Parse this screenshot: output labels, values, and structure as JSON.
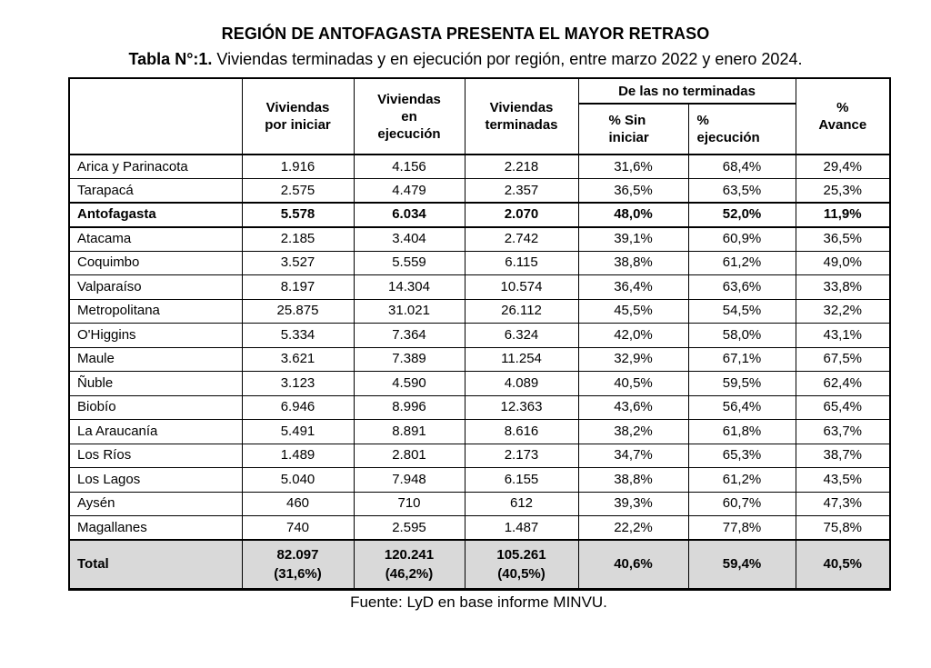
{
  "page": {
    "title": "REGIÓN DE ANTOFAGASTA PRESENTA EL MAYOR RETRASO",
    "caption_bold": "Tabla N°:1.",
    "caption_text": " Viviendas terminadas y en ejecución por región, entre marzo 2022 y enero 2024.",
    "source": "Fuente: LyD en base informe MINVU."
  },
  "colors": {
    "total_row_bg": "#d9d9d9",
    "border": "#000000",
    "text": "#000000",
    "page_bg": "#ffffff"
  },
  "table": {
    "headers": {
      "region": "",
      "por_iniciar": "Viviendas\npor iniciar",
      "en_ejecucion": "Viviendas\nen\nejecución",
      "terminadas": "Viviendas\nterminadas",
      "no_terminadas_group": "De las no terminadas",
      "sin_iniciar": "% Sin\niniciar",
      "ejecucion_pct": "%\nejecución",
      "avance": "%\nAvance"
    },
    "rows": [
      {
        "region": "Arica y Parinacota",
        "values": [
          "1.916",
          "4.156",
          "2.218",
          "31,6%",
          "68,4%",
          "29,4%"
        ],
        "bold": false
      },
      {
        "region": "Tarapacá",
        "values": [
          "2.575",
          "4.479",
          "2.357",
          "36,5%",
          "63,5%",
          "25,3%"
        ],
        "bold": false
      },
      {
        "region": "Antofagasta",
        "values": [
          "5.578",
          "6.034",
          "2.070",
          "48,0%",
          "52,0%",
          "11,9%"
        ],
        "bold": true
      },
      {
        "region": "Atacama",
        "values": [
          "2.185",
          "3.404",
          "2.742",
          "39,1%",
          "60,9%",
          "36,5%"
        ],
        "bold": false
      },
      {
        "region": "Coquimbo",
        "values": [
          "3.527",
          "5.559",
          "6.115",
          "38,8%",
          "61,2%",
          "49,0%"
        ],
        "bold": false
      },
      {
        "region": "Valparaíso",
        "values": [
          "8.197",
          "14.304",
          "10.574",
          "36,4%",
          "63,6%",
          "33,8%"
        ],
        "bold": false
      },
      {
        "region": "Metropolitana",
        "values": [
          "25.875",
          "31.021",
          "26.112",
          "45,5%",
          "54,5%",
          "32,2%"
        ],
        "bold": false
      },
      {
        "region": "O'Higgins",
        "values": [
          "5.334",
          "7.364",
          "6.324",
          "42,0%",
          "58,0%",
          "43,1%"
        ],
        "bold": false
      },
      {
        "region": "Maule",
        "values": [
          "3.621",
          "7.389",
          "11.254",
          "32,9%",
          "67,1%",
          "67,5%"
        ],
        "bold": false
      },
      {
        "region": "Ñuble",
        "values": [
          "3.123",
          "4.590",
          "4.089",
          "40,5%",
          "59,5%",
          "62,4%"
        ],
        "bold": false
      },
      {
        "region": "Biobío",
        "values": [
          "6.946",
          "8.996",
          "12.363",
          "43,6%",
          "56,4%",
          "65,4%"
        ],
        "bold": false
      },
      {
        "region": "La Araucanía",
        "values": [
          "5.491",
          "8.891",
          "8.616",
          "38,2%",
          "61,8%",
          "63,7%"
        ],
        "bold": false
      },
      {
        "region": "Los Ríos",
        "values": [
          "1.489",
          "2.801",
          "2.173",
          "34,7%",
          "65,3%",
          "38,7%"
        ],
        "bold": false
      },
      {
        "region": "Los Lagos",
        "values": [
          "5.040",
          "7.948",
          "6.155",
          "38,8%",
          "61,2%",
          "43,5%"
        ],
        "bold": false
      },
      {
        "region": "Aysén",
        "values": [
          "460",
          "710",
          "612",
          "39,3%",
          "60,7%",
          "47,3%"
        ],
        "bold": false
      },
      {
        "region": "Magallanes",
        "values": [
          "740",
          "2.595",
          "1.487",
          "22,2%",
          "77,8%",
          "75,8%"
        ],
        "bold": false
      }
    ],
    "total": {
      "region": "Total",
      "values": [
        "82.097\n(31,6%)",
        "120.241\n(46,2%)",
        "105.261\n(40,5%)",
        "40,6%",
        "59,4%",
        "40,5%"
      ]
    }
  }
}
